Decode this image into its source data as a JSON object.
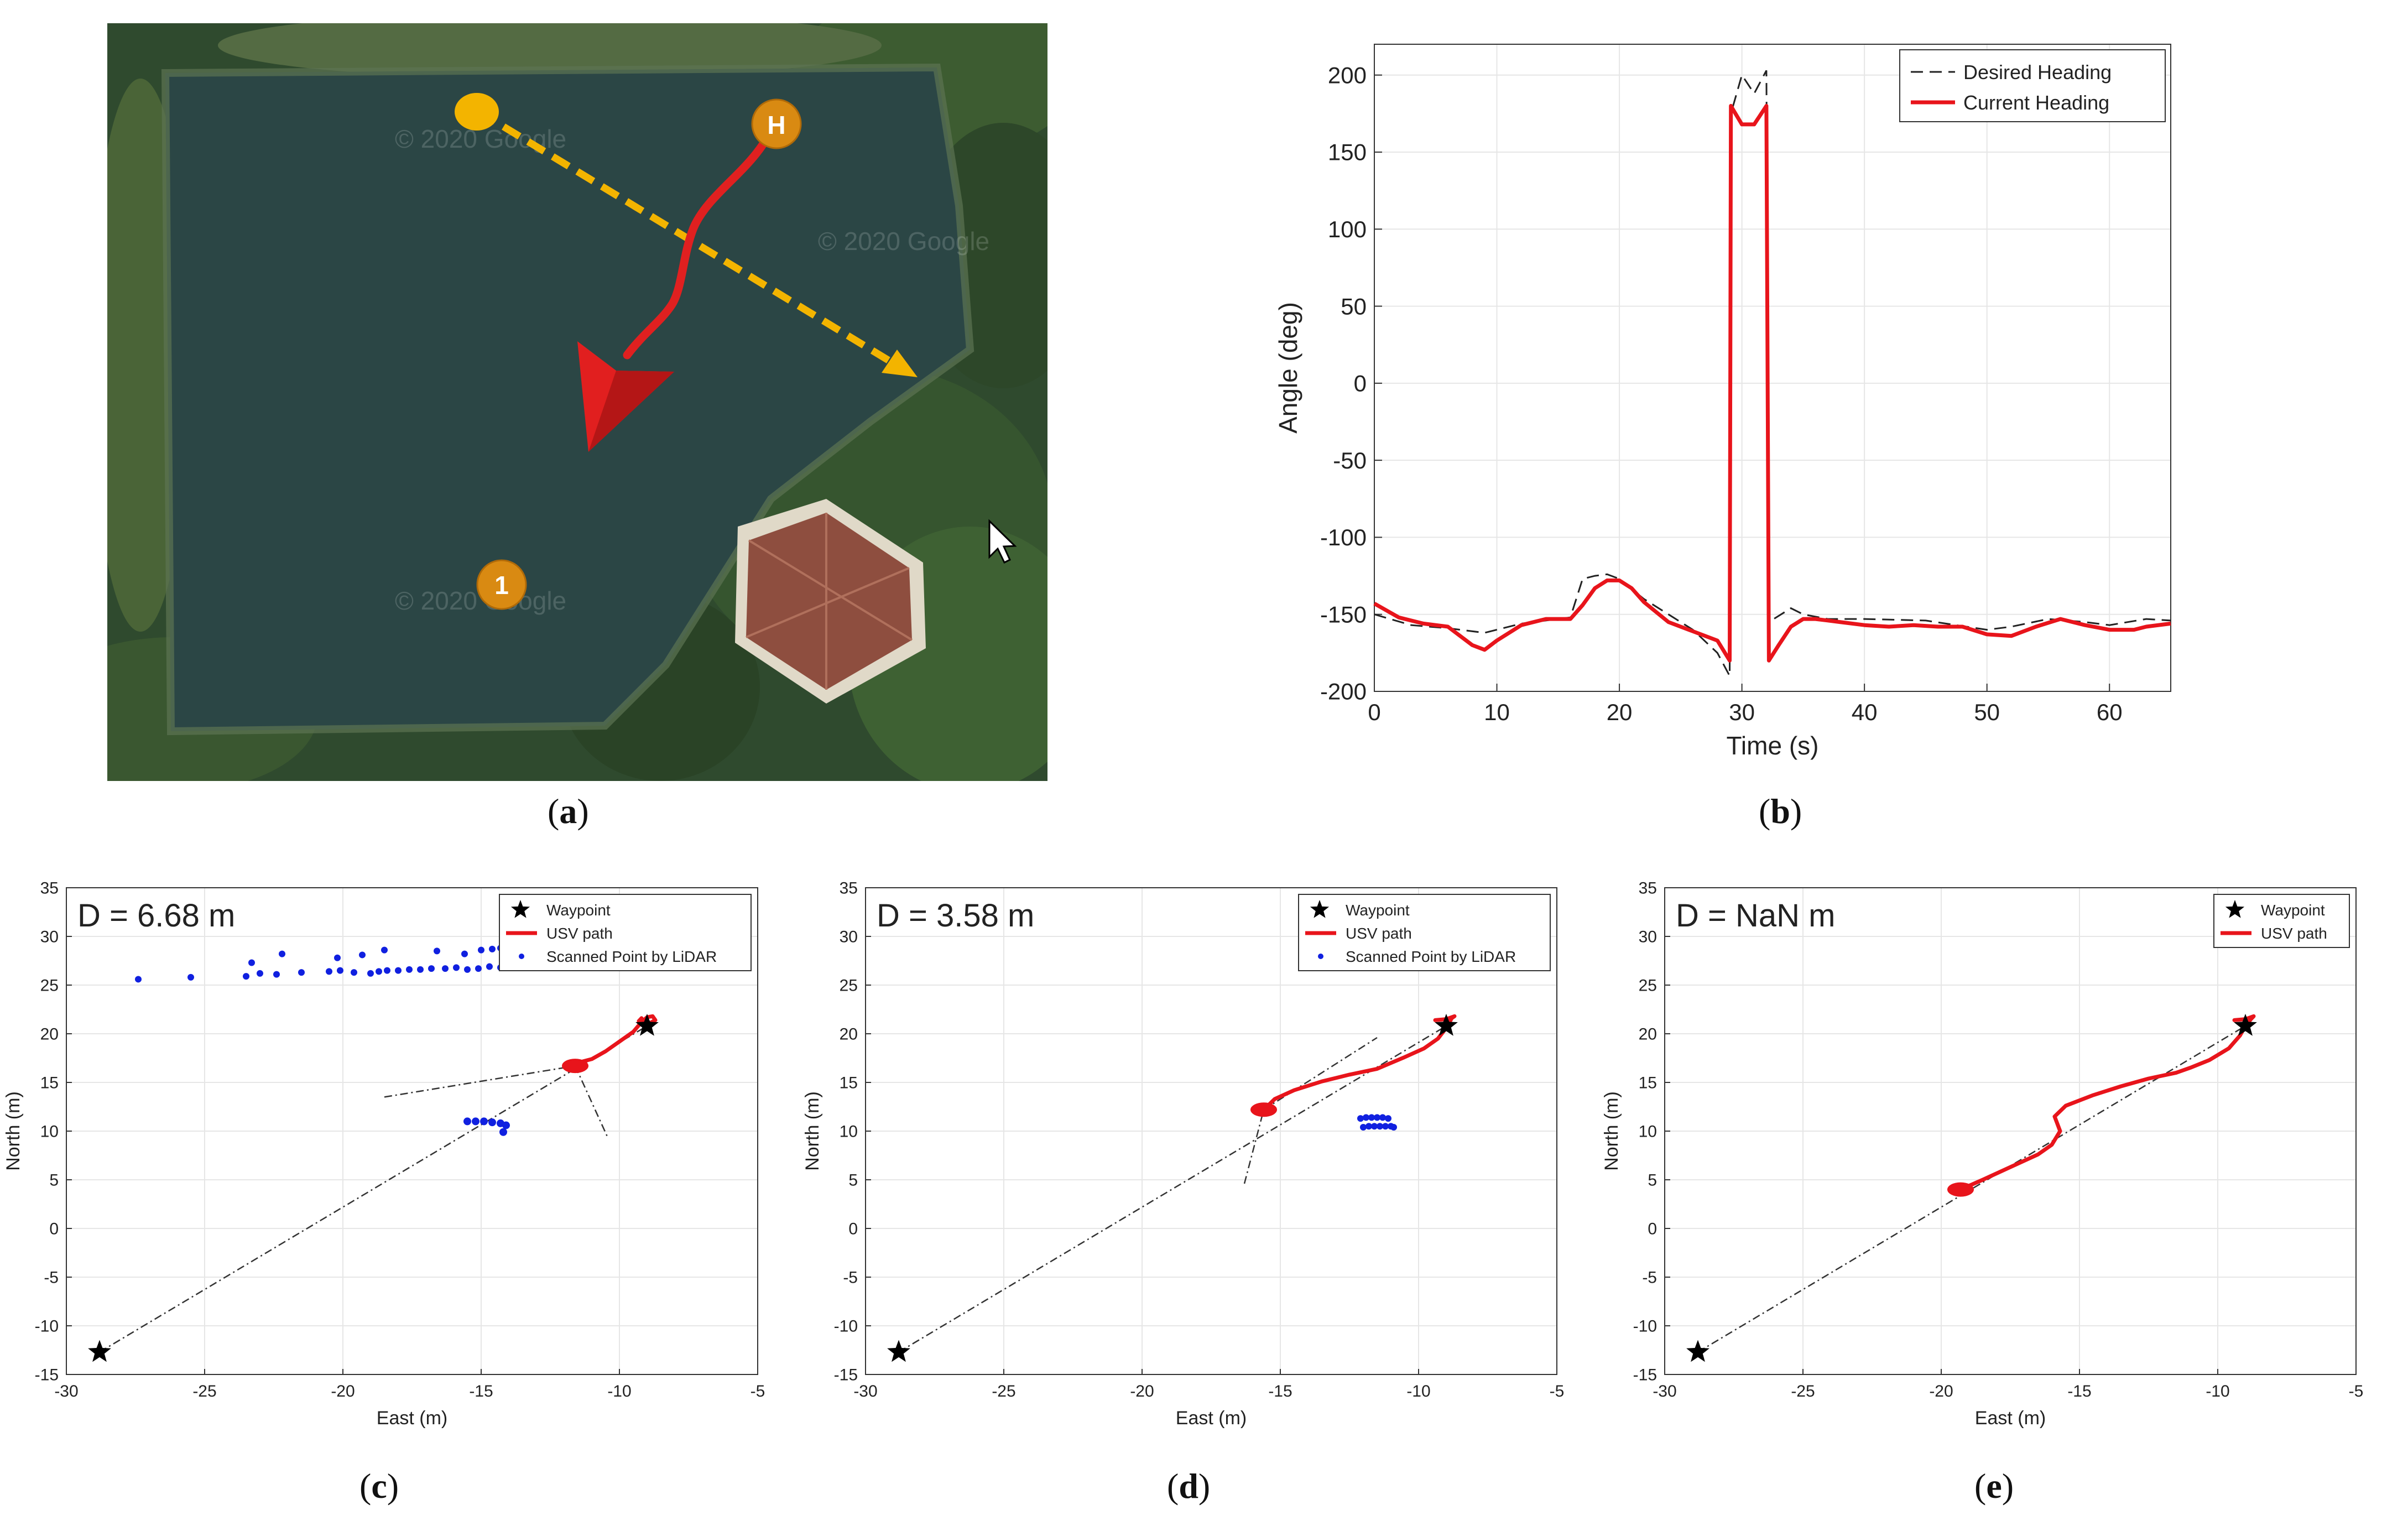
{
  "colors": {
    "path": "#e8141b",
    "desired": "#222222",
    "lidar": "#1020e0",
    "axis": "#333333",
    "grid": "#e6e6e6",
    "arrow_yellow": "#f3b400",
    "marker_orange": "#d98a12"
  },
  "captions": {
    "a": {
      "open": "(",
      "letter": "a",
      "close": ")"
    },
    "b": {
      "open": "(",
      "letter": "b",
      "close": ")"
    },
    "c": {
      "open": "(",
      "letter": "c",
      "close": ")"
    },
    "d": {
      "open": "(",
      "letter": "d",
      "close": ")"
    },
    "e": {
      "open": "(",
      "letter": "e",
      "close": ")"
    }
  },
  "map": {
    "home_label": "H",
    "waypoint_label": "1",
    "watermark": "© 2020 Google"
  },
  "chart_data": [
    {
      "id": "b",
      "type": "line",
      "title": "",
      "xlabel": "Time (s)",
      "ylabel": "Angle (deg)",
      "xlim": [
        0,
        65
      ],
      "ylim": [
        -200,
        220
      ],
      "xticks": [
        0,
        10,
        20,
        30,
        40,
        50,
        60
      ],
      "yticks": [
        -200,
        -150,
        -100,
        -50,
        0,
        50,
        100,
        150,
        200
      ],
      "legend": {
        "position": "top-right",
        "entries": [
          "Desired Heading",
          "Current Heading"
        ]
      },
      "series": [
        {
          "name": "Desired Heading",
          "style": "dashed",
          "x": [
            0,
            3,
            6,
            9,
            12,
            15,
            16,
            17,
            18,
            19,
            20,
            22,
            24,
            26,
            28,
            29,
            29.1,
            30,
            31,
            32,
            32.2,
            34,
            35,
            37,
            40,
            45,
            50,
            52,
            55,
            58,
            60,
            63,
            65
          ],
          "y": [
            -150,
            -157,
            -159,
            -162,
            -156,
            -153,
            -152,
            -127,
            -125,
            -124,
            -127,
            -140,
            -150,
            -160,
            -175,
            -190,
            175,
            200,
            188,
            203,
            -155,
            -146,
            -150,
            -153,
            -153,
            -154,
            -160,
            -158,
            -153,
            -155,
            -157,
            -153,
            -154
          ]
        },
        {
          "name": "Current Heading",
          "style": "solid",
          "x": [
            0,
            2,
            4,
            6,
            8,
            9,
            10,
            12,
            14,
            16,
            17,
            18,
            19,
            20,
            21,
            22,
            24,
            26,
            28,
            29,
            29.1,
            30,
            31,
            32,
            32.2,
            33,
            34,
            35,
            36,
            38,
            40,
            42,
            44,
            46,
            48,
            50,
            52,
            54,
            56,
            58,
            60,
            62,
            63,
            65
          ],
          "y": [
            -143,
            -152,
            -156,
            -158,
            -170,
            -173,
            -167,
            -157,
            -153,
            -153,
            -144,
            -133,
            -128,
            -128,
            -133,
            -142,
            -155,
            -161,
            -167,
            -180,
            180,
            168,
            168,
            180,
            -180,
            -170,
            -158,
            -153,
            -153,
            -155,
            -157,
            -158,
            -157,
            -158,
            -158,
            -163,
            -164,
            -158,
            -153,
            -157,
            -160,
            -160,
            -158,
            -156
          ]
        }
      ]
    },
    {
      "id": "c",
      "type": "line",
      "annotation": "D = 6.68 m",
      "xlabel": "East (m)",
      "ylabel": "North (m)",
      "xlim": [
        -30,
        -5
      ],
      "ylim": [
        -15,
        35
      ],
      "xticks": [
        -30,
        -25,
        -20,
        -15,
        -10,
        -5
      ],
      "yticks": [
        -15,
        -10,
        -5,
        0,
        5,
        10,
        15,
        20,
        25,
        30,
        35
      ],
      "legend": {
        "position": "top-right",
        "entries": [
          "Waypoint",
          "USV path",
          "Scanned Point by LiDAR"
        ]
      },
      "waypoints": {
        "x": [
          -28.8,
          -9
        ],
        "y": [
          -12.7,
          20.8
        ]
      },
      "usv_path": {
        "x": [
          -11.6,
          -11.4,
          -11,
          -10.5,
          -10,
          -9.5,
          -9.2,
          -9,
          -8.8,
          -8.7,
          -8.9,
          -9.3,
          -9.2
        ],
        "y": [
          16.7,
          17.1,
          17.4,
          18.2,
          19.2,
          20.2,
          21.2,
          21.7,
          21.8,
          21.4,
          21.1,
          21.3,
          21.6
        ]
      },
      "guide_lines": [
        {
          "x": [
            -28.8,
            -9
          ],
          "y": [
            -12.7,
            20.8
          ]
        },
        {
          "x": [
            -18.5,
            -11.6
          ],
          "y": [
            13.5,
            16.7
          ]
        },
        {
          "x": [
            -11.6,
            -10.4
          ],
          "y": [
            16.7,
            9.2
          ]
        }
      ],
      "lidar_points": {
        "x": [
          -27.4,
          -25.5,
          -23.5,
          -23,
          -22.4,
          -21.5,
          -20.5,
          -20.1,
          -19.6,
          -19,
          -18.7,
          -18.4,
          -18,
          -17.6,
          -17.2,
          -16.8,
          -16.3,
          -15.9,
          -15.5,
          -15.1,
          -14.7,
          -14.3,
          -23.3,
          -22.2,
          -20.2,
          -19.3,
          -18.5,
          -16.6,
          -15.6,
          -15,
          -14.6,
          -14.3,
          -14.1
        ],
        "y": [
          25.6,
          25.8,
          25.9,
          26.2,
          26.1,
          26.3,
          26.4,
          26.5,
          26.3,
          26.2,
          26.4,
          26.5,
          26.5,
          26.6,
          26.6,
          26.7,
          26.7,
          26.8,
          26.6,
          26.7,
          26.9,
          26.8,
          27.3,
          28.2,
          27.8,
          28.1,
          28.6,
          28.5,
          28.2,
          28.6,
          28.7,
          28.8,
          27.2
        ],
        "x2": [
          -15.5,
          -15.2,
          -14.9,
          -14.6,
          -14.3,
          -14.1,
          -14.2
        ],
        "y2": [
          11,
          11,
          11,
          10.9,
          10.8,
          10.6,
          9.9
        ]
      }
    },
    {
      "id": "d",
      "type": "line",
      "annotation": "D = 3.58 m",
      "xlabel": "East (m)",
      "ylabel": "North (m)",
      "xlim": [
        -30,
        -5
      ],
      "ylim": [
        -15,
        35
      ],
      "xticks": [
        -30,
        -25,
        -20,
        -15,
        -10,
        -5
      ],
      "yticks": [
        -15,
        -10,
        -5,
        0,
        5,
        10,
        15,
        20,
        25,
        30,
        35
      ],
      "legend": {
        "position": "top-right",
        "entries": [
          "Waypoint",
          "USV path",
          "Scanned Point by LiDAR"
        ]
      },
      "waypoints": {
        "x": [
          -28.8,
          -9
        ],
        "y": [
          -12.7,
          20.8
        ]
      },
      "usv_path": {
        "x": [
          -15.6,
          -15.2,
          -14.5,
          -13.5,
          -12.5,
          -11.5,
          -11,
          -10.5,
          -9.8,
          -9.3,
          -9,
          -8.8,
          -8.7,
          -9,
          -9.4
        ],
        "y": [
          12.2,
          13.3,
          14.2,
          15.1,
          15.8,
          16.4,
          17,
          17.6,
          18.5,
          19.5,
          20.6,
          21.6,
          21.8,
          21.5,
          21.4
        ]
      },
      "guide_lines": [
        {
          "x": [
            -28.8,
            -9
          ],
          "y": [
            -12.7,
            20.8
          ]
        },
        {
          "x": [
            -16.3,
            -15.6
          ],
          "y": [
            4.6,
            12.2
          ]
        },
        {
          "x": [
            -15.6,
            -11.5
          ],
          "y": [
            12.2,
            19.6
          ]
        }
      ],
      "lidar_points": {
        "x": [
          -12.1,
          -11.9,
          -11.7,
          -11.5,
          -11.3,
          -11.1,
          -12.0,
          -11.8,
          -11.6,
          -11.4,
          -11.2,
          -11.0,
          -10.9
        ],
        "y": [
          11.3,
          11.4,
          11.4,
          11.4,
          11.4,
          11.3,
          10.4,
          10.5,
          10.5,
          10.5,
          10.5,
          10.5,
          10.4
        ]
      }
    },
    {
      "id": "e",
      "type": "line",
      "annotation": "D = NaN m",
      "xlabel": "East (m)",
      "ylabel": "North (m)",
      "xlim": [
        -30,
        -5
      ],
      "ylim": [
        -15,
        35
      ],
      "xticks": [
        -30,
        -25,
        -20,
        -15,
        -10,
        -5
      ],
      "yticks": [
        -15,
        -10,
        -5,
        0,
        5,
        10,
        15,
        20,
        25,
        30,
        35
      ],
      "legend": {
        "position": "top-right",
        "entries": [
          "Waypoint",
          "USV path"
        ]
      },
      "waypoints": {
        "x": [
          -28.8,
          -9
        ],
        "y": [
          -12.7,
          20.8
        ]
      },
      "usv_path": {
        "x": [
          -19.3,
          -18.5,
          -17.5,
          -16.5,
          -16,
          -15.7,
          -15.9,
          -15.5,
          -14.5,
          -13.5,
          -12.5,
          -11.5,
          -11,
          -10.3,
          -9.6,
          -9.2,
          -9,
          -8.8,
          -8.7,
          -9,
          -9.4
        ],
        "y": [
          4,
          5,
          6.3,
          7.6,
          8.6,
          10,
          11.5,
          12.6,
          13.7,
          14.6,
          15.4,
          16,
          16.5,
          17.3,
          18.5,
          19.8,
          20.8,
          21.5,
          21.8,
          21.5,
          21.4
        ]
      },
      "guide_lines": [
        {
          "x": [
            -28.8,
            -9
          ],
          "y": [
            -12.7,
            20.8
          ]
        }
      ]
    }
  ]
}
